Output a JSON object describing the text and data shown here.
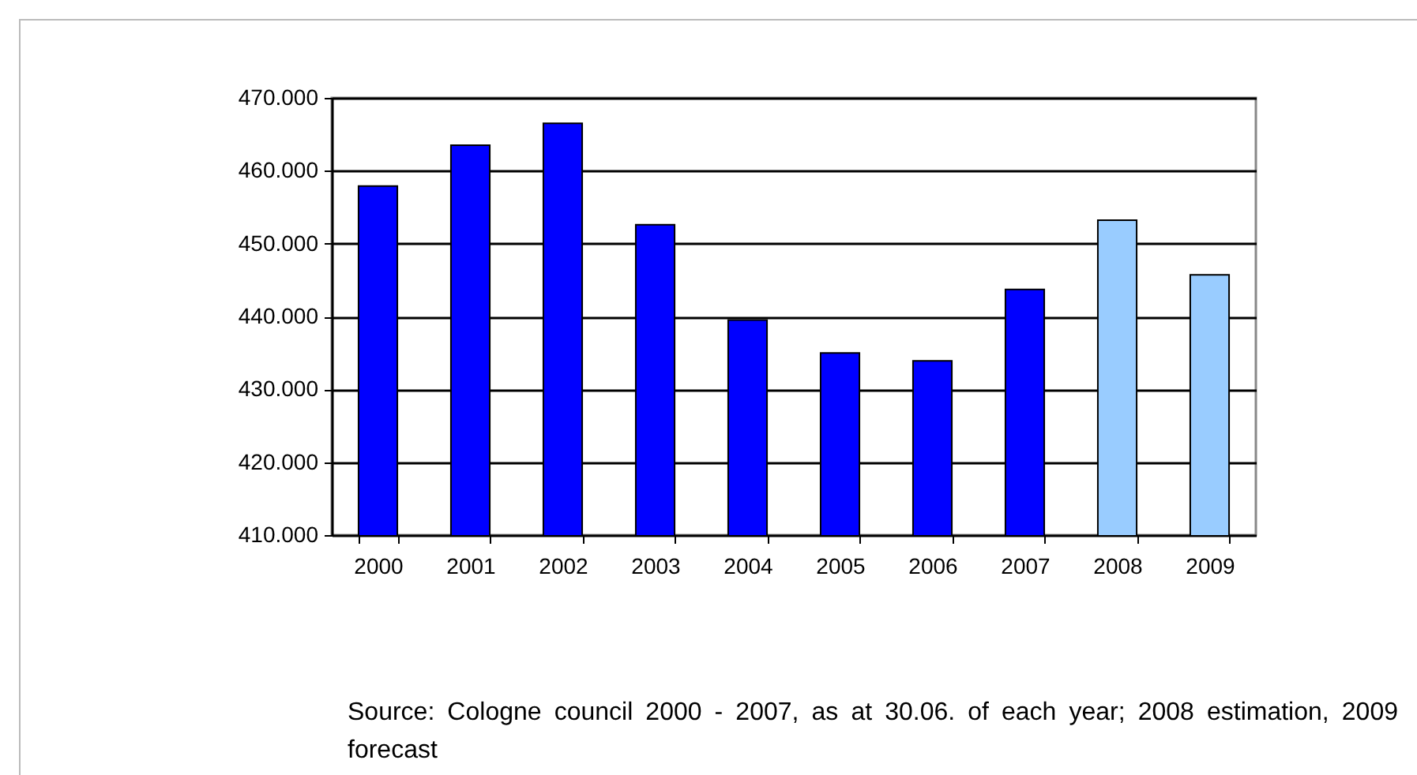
{
  "chart_data": {
    "type": "bar",
    "categories": [
      "2000",
      "2001",
      "2002",
      "2003",
      "2004",
      "2005",
      "2006",
      "2007",
      "2008",
      "2009"
    ],
    "values": [
      457900,
      463500,
      466500,
      452600,
      439500,
      435000,
      433900,
      443700,
      453200,
      445700
    ],
    "colors": [
      "#0000ff",
      "#0000ff",
      "#0000ff",
      "#0000ff",
      "#0000ff",
      "#0000ff",
      "#0000ff",
      "#0000ff",
      "#99ccff",
      "#99ccff"
    ],
    "ylim": [
      410000,
      470000
    ],
    "yticks": [
      {
        "value": 410000,
        "label": "410.000"
      },
      {
        "value": 420000,
        "label": "420.000"
      },
      {
        "value": 430000,
        "label": "430.000"
      },
      {
        "value": 440000,
        "label": "440.000"
      },
      {
        "value": 450000,
        "label": "450.000"
      },
      {
        "value": 460000,
        "label": "460.000"
      },
      {
        "value": 470000,
        "label": "470.000"
      }
    ],
    "grid": "y",
    "annotations": [
      "Source: Cologne council 2000 - 2007, as at 30.06. of each year; 2008 estimation, 2009 forecast"
    ]
  }
}
